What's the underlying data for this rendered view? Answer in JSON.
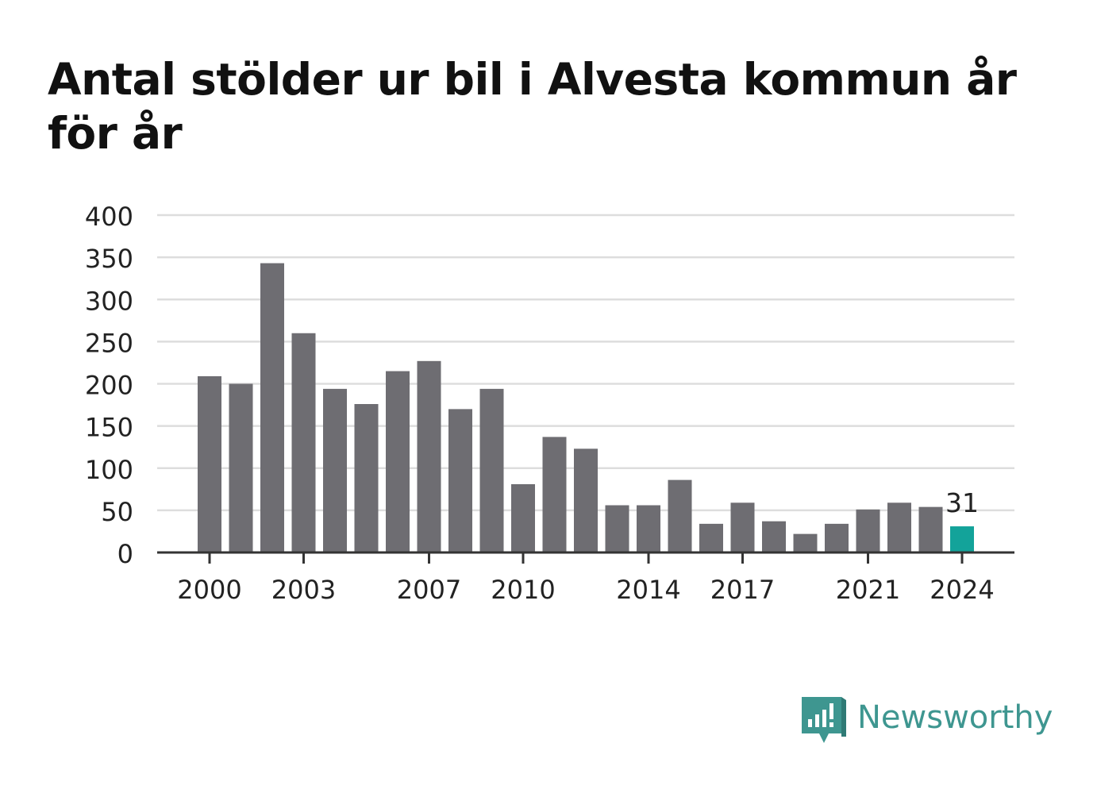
{
  "title": "Antal stölder ur bil i Alvesta kommun år för år",
  "brand": {
    "name": "Newsworthy",
    "logo_icon": "newsworthy-chart-icon"
  },
  "colors": {
    "bar": "#6e6d72",
    "highlight": "#13a39a",
    "grid": "#dddddd",
    "axis": "#333333",
    "brand": "#3e9690"
  },
  "chart_data": {
    "type": "bar",
    "title": "Antal stölder ur bil i Alvesta kommun år för år",
    "categories": [
      "2000",
      "2001",
      "2002",
      "2003",
      "2004",
      "2005",
      "2006",
      "2007",
      "2008",
      "2009",
      "2010",
      "2011",
      "2012",
      "2013",
      "2014",
      "2015",
      "2016",
      "2017",
      "2018",
      "2019",
      "2020",
      "2021",
      "2022",
      "2023",
      "2024"
    ],
    "values": [
      209,
      200,
      343,
      260,
      194,
      176,
      215,
      227,
      170,
      194,
      81,
      137,
      123,
      56,
      56,
      86,
      34,
      59,
      37,
      22,
      34,
      51,
      59,
      54,
      31
    ],
    "highlight_index": 24,
    "data_labels": [
      {
        "category": "2024",
        "text": "31"
      }
    ],
    "x_tick_labels": [
      "2000",
      "2003",
      "2007",
      "2010",
      "2014",
      "2017",
      "2021",
      "2024"
    ],
    "y_ticks": [
      0,
      50,
      100,
      150,
      200,
      250,
      300,
      350,
      400
    ],
    "ylim": [
      0,
      400
    ],
    "grid": true,
    "legend": "none"
  }
}
